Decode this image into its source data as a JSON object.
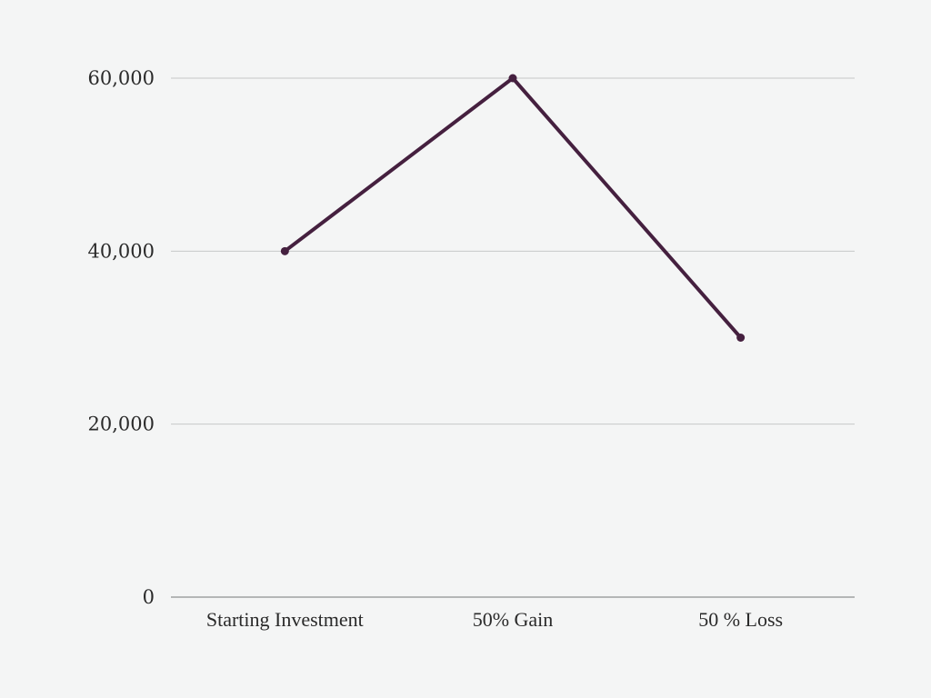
{
  "colors": {
    "background": "#f4f5f5",
    "series": "#45203f",
    "grid": "#c6c8c8",
    "axis": "#8e9090",
    "text": "#2a2a2a"
  },
  "chart_data": {
    "type": "line",
    "title": "",
    "xlabel": "",
    "ylabel": "",
    "categories": [
      "Starting Investment",
      "50% Gain",
      "50 % Loss"
    ],
    "series": [
      {
        "values": [
          40000,
          60000,
          30000
        ]
      }
    ],
    "ylim": [
      0,
      60000
    ],
    "yticks": [
      0,
      20000,
      40000,
      60000
    ],
    "ytick_labels": [
      "0",
      "20,000",
      "40,000",
      "60,000"
    ],
    "grid": true,
    "legend": "none"
  }
}
